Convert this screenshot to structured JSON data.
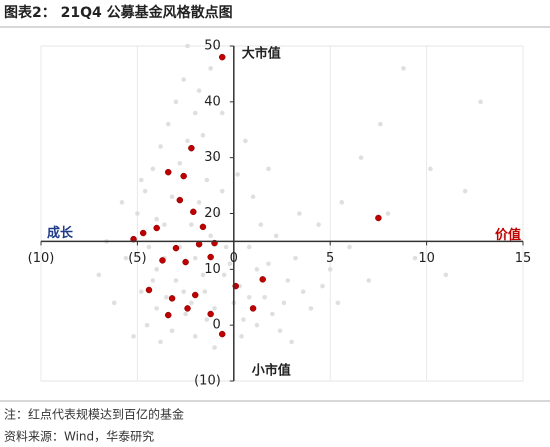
{
  "chart_data": {
    "type": "scatter",
    "title": "图表2： 21Q4 公募基金风格散点图",
    "notes": [
      "注：红点代表规模达到百亿的基金",
      "资料来源：Wind，华泰研究"
    ],
    "annotations": [
      "大市值",
      "小市值",
      "成长",
      "价值"
    ],
    "annotation_colors": [
      "#222222",
      "#222222",
      "#1f3c88",
      "#c00000"
    ],
    "xlim": [
      -10,
      15
    ],
    "ylim": [
      -10,
      50
    ],
    "xticks": [
      {
        "value": -10,
        "label": "(10)"
      },
      {
        "value": -5,
        "label": "(5)"
      },
      0,
      5,
      10,
      15
    ],
    "yticks": [
      {
        "value": -10,
        "label": "(10)"
      },
      0,
      10,
      20,
      30,
      40,
      50
    ],
    "x_axis_at": 15,
    "y_axis_at": 0,
    "grid": true,
    "series": [
      {
        "color": "#d9d9d9",
        "x": [
          -4,
          -3.5,
          -3,
          -2.5,
          -2,
          -1.5,
          -1,
          -0.5,
          0,
          0.5,
          -4.5,
          -4,
          -3.2,
          -2.8,
          -2.2,
          -1.8,
          -1.2,
          -0.8,
          -0.2,
          0.3,
          -5,
          -4.6,
          -4.2,
          -3.8,
          -3.4,
          -3,
          -2.6,
          -2.4,
          -2,
          -1.6,
          -1.4,
          -1,
          -0.6,
          0.2,
          0.8,
          1.2,
          1.6,
          2,
          2.4,
          2.8,
          3.2,
          3.6,
          4,
          4.4,
          5,
          5.6,
          6,
          6.6,
          7,
          7.6,
          8,
          8.8,
          9.4,
          10.2,
          11,
          12,
          12.8,
          14,
          -5.6,
          -5.8,
          -6.2,
          -6.6,
          -7,
          -5.2,
          -4.8,
          -4.4,
          -3.6,
          -3.2,
          -2.8,
          -2.4,
          -1.8,
          -1.2,
          -0.6,
          0.6,
          1,
          1.4,
          1.8,
          2.2,
          2.6,
          3,
          -3.8,
          -2,
          -1,
          0.4,
          1.2,
          -4.2,
          -3.6,
          -2.6,
          -1.6,
          -0.4,
          -4.8,
          -4,
          -3.4,
          -2.2,
          -1.4,
          0.8,
          1.8,
          3.4,
          4.6,
          5.4
        ],
        "values": [
          10,
          5,
          8,
          2,
          12,
          6,
          3,
          9,
          4,
          1,
          0,
          3,
          -1,
          14,
          18,
          22,
          16,
          20,
          11,
          7,
          20,
          24,
          28,
          32,
          36,
          40,
          44,
          50,
          38,
          34,
          26,
          30,
          24,
          27,
          14,
          10,
          5,
          2,
          -1,
          8,
          12,
          6,
          3,
          18,
          10,
          22,
          14,
          30,
          8,
          36,
          20,
          46,
          12,
          28,
          9,
          24,
          40,
          16,
          12,
          22,
          4,
          15,
          9,
          -2,
          6,
          14,
          18,
          23,
          29,
          33,
          42,
          46,
          38,
          33,
          23,
          18,
          28,
          16,
          4,
          -3,
          -3,
          -2,
          -4,
          -2,
          0,
          8,
          12,
          6,
          9,
          14,
          26,
          19,
          2,
          4,
          1,
          5,
          11,
          20,
          7,
          4
        ]
      },
      {
        "color": "#c00000",
        "x": [
          -0.6,
          -2.2,
          -3.4,
          -2.6,
          7.5,
          -5.2,
          -4.7,
          -2.1,
          -2.8,
          -1.6,
          -3.7,
          -2.5,
          -1.2,
          1.5,
          0.1,
          -4.4,
          -3.2,
          -2,
          1,
          -0.6,
          -1.2,
          -3.4,
          -2.4,
          -1.8,
          -4,
          -1,
          -3
        ],
        "values": [
          48,
          31.7,
          27.4,
          26.7,
          19.2,
          15.4,
          16.5,
          20.3,
          22.4,
          17.6,
          11.6,
          11.3,
          12.2,
          8.2,
          7,
          6.3,
          4.8,
          5.4,
          3,
          -1.6,
          2,
          1.8,
          3,
          14.5,
          17.4,
          14.7,
          13.8
        ]
      }
    ]
  }
}
